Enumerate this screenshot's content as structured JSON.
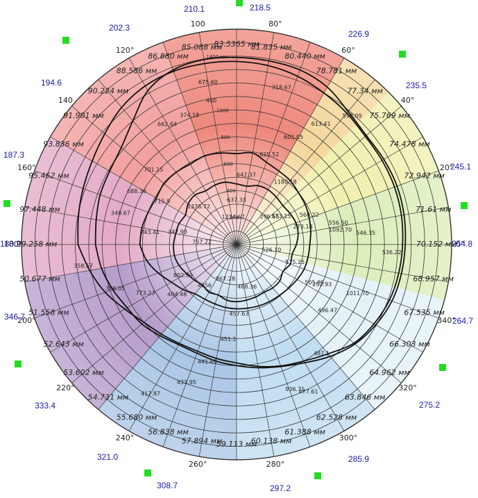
{
  "chart_data": {
    "type": "polar-line",
    "angle_ticks": [
      {
        "angle": 0,
        "label": "0°"
      },
      {
        "angle": 20,
        "label": "20°"
      },
      {
        "angle": 40,
        "label": "40°"
      },
      {
        "angle": 60,
        "label": "60°"
      },
      {
        "angle": 80,
        "label": "80°"
      },
      {
        "angle": 100,
        "label": "100"
      },
      {
        "angle": 120,
        "label": "120°"
      },
      {
        "angle": 140,
        "label": "140"
      },
      {
        "angle": 160,
        "label": "160°"
      },
      {
        "angle": 180,
        "label": "180°"
      },
      {
        "angle": 200,
        "label": "200°"
      },
      {
        "angle": 220,
        "label": "220°"
      },
      {
        "angle": 240,
        "label": "240°"
      },
      {
        "angle": 260,
        "label": "260°"
      },
      {
        "angle": 280,
        "label": "280°"
      },
      {
        "angle": 300,
        "label": "300°"
      },
      {
        "angle": 320,
        "label": "320°"
      },
      {
        "angle": 340,
        "label": "340°"
      }
    ],
    "radial_ticks": [
      {
        "r": 200,
        "label": "200"
      },
      {
        "r": 400,
        "label": "400"
      },
      {
        "r": 600,
        "label": "600"
      },
      {
        "r": 800,
        "label": "800"
      },
      {
        "r": 1000,
        "label": "1000"
      },
      {
        "r": 1400,
        "label": "1400 мм"
      }
    ],
    "r_max": 1600,
    "outer_labels": [
      {
        "angle": 90,
        "text": "83.5365 мм"
      },
      {
        "angle": 80,
        "text": "81.835 мм"
      },
      {
        "angle": 70,
        "text": "80.440 мм"
      },
      {
        "angle": 60,
        "text": "78.781 мм"
      },
      {
        "angle": 50,
        "text": "77.34 мм"
      },
      {
        "angle": 40,
        "text": "75.769 мм"
      },
      {
        "angle": 30,
        "text": "74.478 мм"
      },
      {
        "angle": 20,
        "text": "72.942 мм"
      },
      {
        "angle": 10,
        "text": "71.61 мм"
      },
      {
        "angle": 0,
        "text": "70.152 мм"
      },
      {
        "angle": -10,
        "text": "68.957 мм"
      },
      {
        "angle": -20,
        "text": "67.535 мм"
      },
      {
        "angle": -30,
        "text": "66.303 мм"
      },
      {
        "angle": -40,
        "text": "64.962 мм"
      },
      {
        "angle": -50,
        "text": "63.846 мм"
      },
      {
        "angle": -60,
        "text": "62.528 мм"
      },
      {
        "angle": -70,
        "text": "61.388 мм"
      },
      {
        "angle": -80,
        "text": "60.138 мм"
      },
      {
        "angle": -90,
        "text": "59.113 мм"
      },
      {
        "angle": -100,
        "text": "57.894 мм"
      },
      {
        "angle": -110,
        "text": "56.838 мм"
      },
      {
        "angle": -120,
        "text": "55.680 мм"
      },
      {
        "angle": -130,
        "text": "54.731 мм"
      },
      {
        "angle": -140,
        "text": "53.602 мм"
      },
      {
        "angle": -150,
        "text": "52.643 мм"
      },
      {
        "angle": -160,
        "text": "51.558 мм"
      },
      {
        "angle": -170,
        "text": "50.677 мм"
      },
      {
        "angle": 180,
        "text": "99.258 мм"
      },
      {
        "angle": 170,
        "text": "97.448 мм"
      },
      {
        "angle": 160,
        "text": "95.462 мм"
      },
      {
        "angle": 150,
        "text": "93.836 мм"
      },
      {
        "angle": 140,
        "text": "91.901 мм"
      },
      {
        "angle": 130,
        "text": "90.224 мм"
      },
      {
        "angle": 120,
        "text": "88.586 мм"
      },
      {
        "angle": 110,
        "text": "86.880 мм"
      },
      {
        "angle": 100,
        "text": "85.088 мм"
      }
    ],
    "inner_values": [
      {
        "angle": 97,
        "text": "1274.67"
      },
      {
        "angle": 135,
        "text": "1376.72"
      },
      {
        "angle": 52,
        "text": "1180.18"
      },
      {
        "angle": 8,
        "text": "1092.70"
      },
      {
        "angle": -22,
        "text": "1011.70"
      },
      {
        "angle": -68,
        "text": "936.71"
      },
      {
        "angle": -108,
        "text": "867.28"
      },
      {
        "angle": -150,
        "text": "802.99"
      },
      {
        "angle": 172,
        "text": "743.41"
      },
      {
        "angle": 152,
        "text": "688.36"
      },
      {
        "angle": 120,
        "text": "662.64"
      },
      {
        "angle": 100,
        "text": "675.60"
      },
      {
        "angle": 90,
        "text": "637.33"
      },
      {
        "angle": 82,
        "text": "642.37"
      },
      {
        "angle": 70,
        "text": "625.52"
      },
      {
        "angle": 62,
        "text": "601.05"
      },
      {
        "angle": 55,
        "text": "613.41"
      },
      {
        "angle": 48,
        "text": "590.09"
      },
      {
        "angle": 32,
        "text": "573.15"
      },
      {
        "angle": 22,
        "text": "568.22"
      },
      {
        "angle": 12,
        "text": "556.50"
      },
      {
        "angle": 5,
        "text": "546.35"
      },
      {
        "angle": -3,
        "text": "536.22"
      },
      {
        "angle": -9,
        "text": "526.10"
      },
      {
        "angle": -17,
        "text": "515.25"
      },
      {
        "angle": -26,
        "text": "505.85"
      },
      {
        "angle": -36,
        "text": "496.47"
      },
      {
        "angle": -52,
        "text": "487.1"
      },
      {
        "angle": -64,
        "text": "477.61"
      },
      {
        "angle": -76,
        "text": "468.36"
      },
      {
        "angle": -88,
        "text": "457.63"
      },
      {
        "angle": -95,
        "text": "451.1"
      },
      {
        "angle": -104,
        "text": "441.69"
      },
      {
        "angle": -110,
        "text": "433.95"
      },
      {
        "angle": -120,
        "text": "417.87"
      },
      {
        "angle": -128,
        "text": "4656"
      },
      {
        "angle": -140,
        "text": "404.48"
      },
      {
        "angle": -152,
        "text": "773.23"
      },
      {
        "angle": -160,
        "text": "386.05"
      },
      {
        "angle": -172,
        "text": "358.57"
      },
      {
        "angle": 176,
        "text": "757.22"
      },
      {
        "angle": 168,
        "text": "347.93"
      },
      {
        "angle": 150,
        "text": "715.9"
      },
      {
        "angle": 138,
        "text": "701.15"
      },
      {
        "angle": 110,
        "text": "374.18"
      },
      {
        "angle": 74,
        "text": "318.67"
      },
      {
        "angle": 40,
        "text": "296.65"
      },
      {
        "angle": 15,
        "text": "273.18"
      },
      {
        "angle": -25,
        "text": "252.93"
      },
      {
        "angle": 165,
        "text": "348.67"
      },
      {
        "angle": 100,
        "text": "400"
      }
    ],
    "side_numbers": [
      {
        "text": "210.1"
      },
      {
        "text": "218.5"
      },
      {
        "text": "226.9"
      },
      {
        "text": "235.5"
      },
      {
        "text": "245.1"
      },
      {
        "text": "254.8"
      },
      {
        "text": "264.7"
      },
      {
        "text": "275.2"
      },
      {
        "text": "285.9"
      },
      {
        "text": "297.2"
      },
      {
        "text": "308.7"
      },
      {
        "text": "321.0"
      },
      {
        "text": "333.4"
      },
      {
        "text": "346.7"
      },
      {
        "text": "180.2"
      },
      {
        "text": "187.3"
      },
      {
        "text": "194.6"
      },
      {
        "text": "202.3"
      }
    ],
    "series": [
      {
        "style": "outer-loop",
        "points": [
          [
            180,
            1180
          ],
          [
            170,
            1195
          ],
          [
            160,
            1215
          ],
          [
            150,
            1240
          ],
          [
            140,
            1280
          ],
          [
            130,
            1330
          ],
          [
            120,
            1360
          ],
          [
            110,
            1370
          ],
          [
            100,
            1365
          ],
          [
            90,
            1360
          ],
          [
            80,
            1350
          ],
          [
            70,
            1330
          ],
          [
            60,
            1300
          ],
          [
            50,
            1275
          ],
          [
            40,
            1250
          ],
          [
            30,
            1250
          ],
          [
            20,
            1250
          ],
          [
            10,
            1245
          ],
          [
            0,
            1235
          ],
          [
            -10,
            1225
          ],
          [
            -20,
            1210
          ],
          [
            -30,
            1180
          ],
          [
            -40,
            1140
          ],
          [
            -50,
            1060
          ],
          [
            -60,
            1000
          ],
          [
            -70,
            960
          ],
          [
            -80,
            920
          ],
          [
            -90,
            880
          ],
          [
            -100,
            860
          ],
          [
            -110,
            845
          ],
          [
            -120,
            850
          ],
          [
            -130,
            870
          ],
          [
            -140,
            900
          ],
          [
            -150,
            960
          ],
          [
            -160,
            1040
          ],
          [
            -170,
            1110
          ],
          [
            180,
            1180
          ]
        ]
      },
      {
        "style": "second-loop",
        "points": [
          [
            180,
            1050
          ],
          [
            170,
            1060
          ],
          [
            160,
            1080
          ],
          [
            150,
            1090
          ],
          [
            140,
            1120
          ],
          [
            130,
            1200
          ],
          [
            120,
            1320
          ],
          [
            110,
            1380
          ],
          [
            100,
            1395
          ],
          [
            90,
            1390
          ],
          [
            80,
            1385
          ],
          [
            70,
            1380
          ],
          [
            60,
            1350
          ],
          [
            50,
            1290
          ],
          [
            40,
            1260
          ],
          [
            30,
            1265
          ],
          [
            20,
            1270
          ],
          [
            10,
            1265
          ],
          [
            0,
            1255
          ],
          [
            -10,
            1245
          ],
          [
            -20,
            1230
          ],
          [
            -30,
            1195
          ],
          [
            -40,
            1150
          ],
          [
            -50,
            1085
          ],
          [
            -60,
            1015
          ],
          [
            -70,
            965
          ],
          [
            -80,
            930
          ],
          [
            -90,
            900
          ],
          [
            -100,
            880
          ],
          [
            -110,
            860
          ],
          [
            -120,
            860
          ],
          [
            -130,
            885
          ],
          [
            -140,
            920
          ],
          [
            -150,
            940
          ],
          [
            -160,
            980
          ],
          [
            -170,
            1020
          ],
          [
            180,
            1050
          ]
        ]
      },
      {
        "style": "middle-loop",
        "points": [
          [
            180,
            720
          ],
          [
            170,
            715
          ],
          [
            160,
            700
          ],
          [
            150,
            690
          ],
          [
            140,
            705
          ],
          [
            130,
            700
          ],
          [
            120,
            690
          ],
          [
            110,
            700
          ],
          [
            100,
            690
          ],
          [
            90,
            675
          ],
          [
            80,
            690
          ],
          [
            70,
            650
          ],
          [
            60,
            630
          ],
          [
            50,
            620
          ],
          [
            40,
            600
          ],
          [
            30,
            590
          ],
          [
            20,
            575
          ],
          [
            10,
            560
          ],
          [
            0,
            545
          ],
          [
            -10,
            540
          ],
          [
            -20,
            535
          ],
          [
            -30,
            520
          ],
          [
            -40,
            505
          ],
          [
            -50,
            495
          ],
          [
            -60,
            490
          ],
          [
            -70,
            485
          ],
          [
            -80,
            480
          ],
          [
            -90,
            478
          ],
          [
            -100,
            475
          ],
          [
            -110,
            470
          ],
          [
            -120,
            470
          ],
          [
            -130,
            480
          ],
          [
            -140,
            520
          ],
          [
            -150,
            560
          ],
          [
            -160,
            620
          ],
          [
            -170,
            680
          ],
          [
            180,
            720
          ]
        ]
      },
      {
        "style": "inner-wavy",
        "points": [
          [
            180,
            470
          ],
          [
            170,
            460
          ],
          [
            160,
            455
          ],
          [
            150,
            440
          ],
          [
            140,
            470
          ],
          [
            130,
            480
          ],
          [
            120,
            460
          ],
          [
            110,
            470
          ],
          [
            100,
            470
          ],
          [
            90,
            450
          ],
          [
            80,
            440
          ],
          [
            70,
            465
          ],
          [
            60,
            470
          ],
          [
            50,
            460
          ],
          [
            40,
            450
          ],
          [
            30,
            460
          ],
          [
            20,
            470
          ],
          [
            10,
            465
          ],
          [
            0,
            445
          ],
          [
            -10,
            420
          ],
          [
            -20,
            425
          ],
          [
            -30,
            400
          ],
          [
            -40,
            420
          ],
          [
            -50,
            420
          ],
          [
            -60,
            410
          ],
          [
            -70,
            415
          ],
          [
            -80,
            420
          ],
          [
            -90,
            425
          ],
          [
            -100,
            420
          ],
          [
            -110,
            400
          ],
          [
            -120,
            410
          ],
          [
            -130,
            395
          ],
          [
            -140,
            410
          ],
          [
            -150,
            430
          ],
          [
            -160,
            455
          ],
          [
            -170,
            470
          ],
          [
            180,
            470
          ]
        ]
      }
    ],
    "background_sectors": [
      {
        "from": 60,
        "to": 110,
        "color": "#e85a4a"
      },
      {
        "from": 110,
        "to": 150,
        "color": "#ec7a78"
      },
      {
        "from": 150,
        "to": 190,
        "color": "#d88ab0"
      },
      {
        "from": 190,
        "to": 230,
        "color": "#9a78b8"
      },
      {
        "from": 230,
        "to": 270,
        "color": "#8ab0dc"
      },
      {
        "from": 270,
        "to": 310,
        "color": "#a8d0ec"
      },
      {
        "from": 310,
        "to": 345,
        "color": "#d8ecf4"
      },
      {
        "from": 345,
        "to": 380,
        "color": "#cfe6a0"
      },
      {
        "from": 380,
        "to": 405,
        "color": "#eaea90"
      },
      {
        "from": 405,
        "to": 420,
        "color": "#f0c878"
      }
    ],
    "colors": {
      "marker": "#22dd22",
      "blue_label": "#1a1aa8",
      "line": "#111111"
    }
  }
}
